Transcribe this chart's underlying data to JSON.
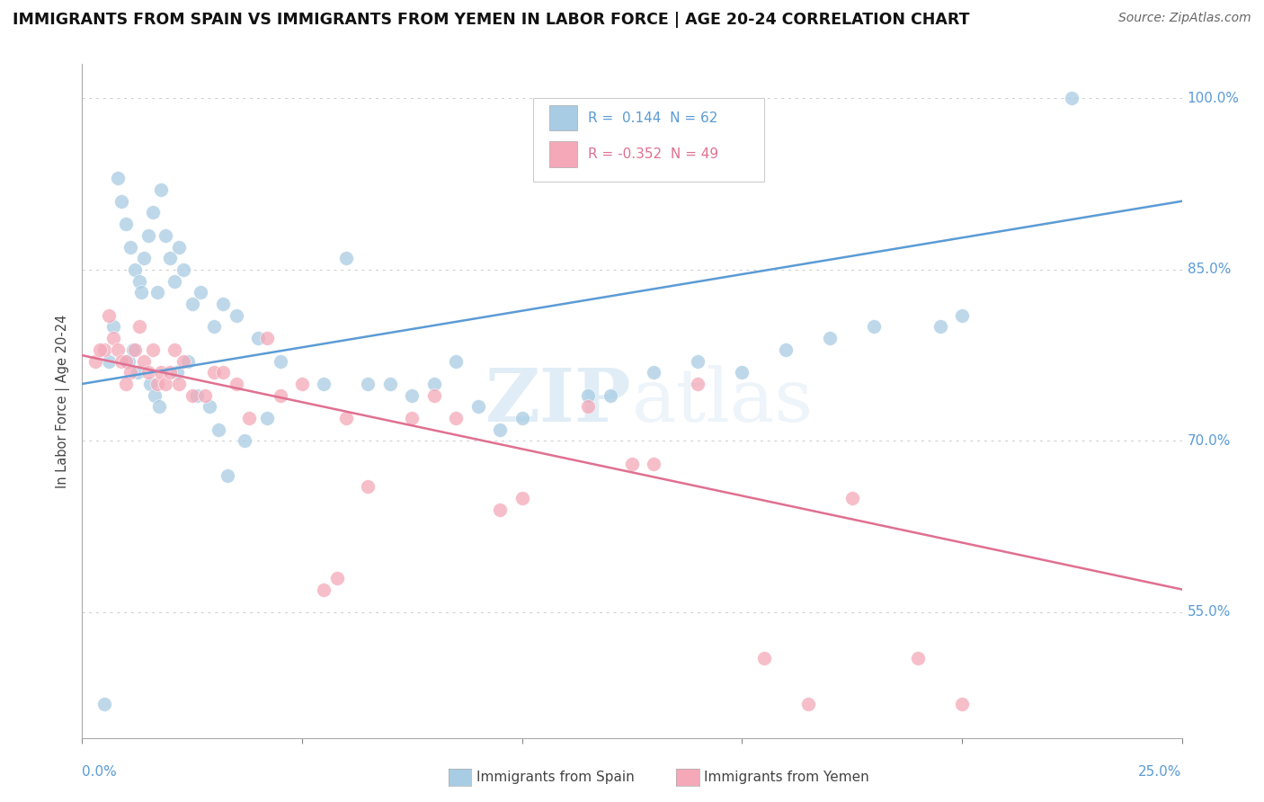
{
  "title": "IMMIGRANTS FROM SPAIN VS IMMIGRANTS FROM YEMEN IN LABOR FORCE | AGE 20-24 CORRELATION CHART",
  "source": "Source: ZipAtlas.com",
  "ylabel_label": "In Labor Force | Age 20-24",
  "legend_spain": "Immigrants from Spain",
  "legend_yemen": "Immigrants from Yemen",
  "R_spain": 0.144,
  "N_spain": 62,
  "R_yemen": -0.352,
  "N_yemen": 49,
  "color_spain": "#a8cce4",
  "color_yemen": "#f4a8b8",
  "color_spain_line": "#5b9bd5",
  "color_yemen_line": "#e07090",
  "watermark": "ZIPatlas",
  "xlim": [
    0.0,
    25.0
  ],
  "ylim": [
    44.0,
    103.0
  ],
  "yticks": [
    55.0,
    70.0,
    85.0,
    100.0
  ],
  "ytick_labels": [
    "55.0%",
    "70.0%",
    "85.0%",
    "100.0%"
  ],
  "spain_trend": [
    75.0,
    91.0
  ],
  "yemen_trend": [
    77.5,
    57.0
  ],
  "spain_x": [
    0.5,
    0.7,
    0.8,
    0.9,
    1.0,
    1.1,
    1.2,
    1.3,
    1.4,
    1.5,
    1.6,
    1.7,
    1.8,
    1.9,
    2.0,
    2.1,
    2.2,
    2.3,
    2.5,
    2.7,
    3.0,
    3.2,
    3.5,
    4.0,
    4.5,
    5.5,
    6.0,
    7.0,
    8.0,
    8.5,
    9.0,
    10.0,
    11.5,
    13.0,
    14.0,
    16.0,
    17.0,
    18.0,
    20.0,
    0.6,
    1.05,
    1.15,
    1.25,
    1.55,
    1.65,
    1.75,
    2.15,
    2.4,
    2.6,
    2.9,
    3.1,
    3.7,
    4.2,
    6.5,
    7.5,
    9.5,
    12.0,
    15.0,
    19.5,
    22.5,
    1.35,
    3.3
  ],
  "spain_y": [
    47.0,
    80.0,
    93.0,
    91.0,
    89.0,
    87.0,
    85.0,
    84.0,
    86.0,
    88.0,
    90.0,
    83.0,
    92.0,
    88.0,
    86.0,
    84.0,
    87.0,
    85.0,
    82.0,
    83.0,
    80.0,
    82.0,
    81.0,
    79.0,
    77.0,
    75.0,
    86.0,
    75.0,
    75.0,
    77.0,
    73.0,
    72.0,
    74.0,
    76.0,
    77.0,
    78.0,
    79.0,
    80.0,
    81.0,
    77.0,
    77.0,
    78.0,
    76.0,
    75.0,
    74.0,
    73.0,
    76.0,
    77.0,
    74.0,
    73.0,
    71.0,
    70.0,
    72.0,
    75.0,
    74.0,
    71.0,
    74.0,
    76.0,
    80.0,
    100.0,
    83.0,
    67.0
  ],
  "yemen_x": [
    0.3,
    0.5,
    0.7,
    0.8,
    0.9,
    1.0,
    1.1,
    1.2,
    1.4,
    1.5,
    1.6,
    1.7,
    1.8,
    1.9,
    2.0,
    2.2,
    2.5,
    2.8,
    3.0,
    3.5,
    4.2,
    5.0,
    5.5,
    6.5,
    8.0,
    10.0,
    11.5,
    14.0,
    15.5,
    17.5,
    19.0,
    0.6,
    1.3,
    2.1,
    3.2,
    4.5,
    6.0,
    7.5,
    9.5,
    12.5,
    16.5,
    20.0,
    0.4,
    1.0,
    2.3,
    3.8,
    5.8,
    8.5,
    13.0
  ],
  "yemen_y": [
    77.0,
    78.0,
    79.0,
    78.0,
    77.0,
    77.0,
    76.0,
    78.0,
    77.0,
    76.0,
    78.0,
    75.0,
    76.0,
    75.0,
    76.0,
    75.0,
    74.0,
    74.0,
    76.0,
    75.0,
    79.0,
    75.0,
    57.0,
    66.0,
    74.0,
    65.0,
    73.0,
    75.0,
    51.0,
    65.0,
    51.0,
    81.0,
    80.0,
    78.0,
    76.0,
    74.0,
    72.0,
    72.0,
    64.0,
    68.0,
    47.0,
    47.0,
    78.0,
    75.0,
    77.0,
    72.0,
    58.0,
    72.0,
    68.0
  ]
}
